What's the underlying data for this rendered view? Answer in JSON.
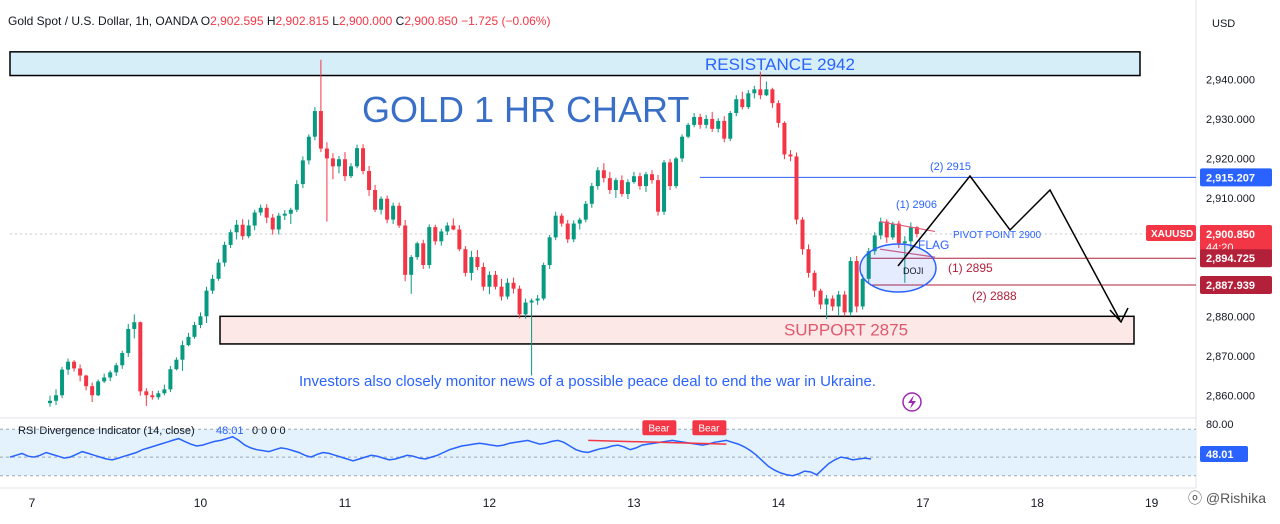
{
  "header": {
    "symbol": "Gold Spot / U.S. Dollar, 1h, OANDA",
    "o_label": "O",
    "o_value": "2,902.595",
    "h_label": "H",
    "h_value": "2,902.815",
    "l_label": "L",
    "l_value": "2,900.000",
    "c_label": "C",
    "c_value": "2,900.850",
    "change": "−1.725 (−0.06%)"
  },
  "currency": "USD",
  "title_annotation": "GOLD 1 HR CHART",
  "resistance_label": "RESISTANCE 2942",
  "support_label": "SUPPORT  2875",
  "news_text": "Investors also closely monitor news of a possible peace deal to end the war in Ukraine.",
  "annotations": {
    "target2_top": "(2) 2915",
    "target1_top": "(1) 2906",
    "pivot": "PIVOT POINT 2900",
    "flag": "FLAG",
    "doji": "DOJI",
    "target1_bottom": "(1) 2895",
    "target2_bottom": "(2) 2888"
  },
  "price_tags": {
    "level_2915": "2,915.207",
    "symbol_tag": "XAUUSD",
    "current_price": "2,900.850",
    "countdown": "44:20",
    "level_2894": "2,894.725",
    "level_2887": "2,887.939"
  },
  "rsi": {
    "label": "RSI Divergence Indicator (14, close)",
    "value_text": "48.01",
    "extra": "0 0 0 0",
    "bear_label": "Bear",
    "current": "48.01"
  },
  "watermark": "@Rishika",
  "colors": {
    "up": "#089981",
    "down": "#f23645",
    "annotation_blue": "#2962ff",
    "title_blue": "#3a6fc8",
    "resistance_fill": "#d6eef8",
    "support_fill": "#fde8e8",
    "rsi_band": "#e3f2fd",
    "rsi_line": "#2962ff"
  },
  "chart_data": {
    "type": "candlestick",
    "y_axis": {
      "min": 2855,
      "max": 2950,
      "ticks": [
        "2,940.000",
        "2,930.000",
        "2,920.000",
        "2,910.000",
        "2,880.000",
        "2,870.000",
        "2,860.000"
      ],
      "tick_values": [
        2940,
        2930,
        2920,
        2910,
        2880,
        2870,
        2860
      ]
    },
    "x_axis": {
      "ticks": [
        "7",
        "10",
        "11",
        "12",
        "13",
        "14",
        "17",
        "18",
        "19"
      ],
      "tick_positions": [
        0,
        24,
        48,
        72,
        96,
        120,
        144,
        163,
        182
      ]
    },
    "levels": {
      "resistance_top": 2947,
      "resistance_bottom": 2941,
      "support_top": 2880,
      "support_bottom": 2873,
      "target_2915": 2915.207,
      "current": 2900.85,
      "level_2894": 2894.725,
      "level_2887": 2887.939
    },
    "candles": [
      {
        "o": 2858.0,
        "h": 2859.9,
        "l": 2857.1,
        "c": 2858.6
      },
      {
        "o": 2858.6,
        "h": 2861.5,
        "l": 2857.5,
        "c": 2860.0
      },
      {
        "o": 2860.0,
        "h": 2867.2,
        "l": 2859.3,
        "c": 2866.5
      },
      {
        "o": 2866.5,
        "h": 2869.3,
        "l": 2865.2,
        "c": 2868.5
      },
      {
        "o": 2868.5,
        "h": 2868.9,
        "l": 2866.0,
        "c": 2866.8
      },
      {
        "o": 2866.8,
        "h": 2867.8,
        "l": 2863.5,
        "c": 2865.0
      },
      {
        "o": 2865.0,
        "h": 2865.2,
        "l": 2861.2,
        "c": 2862.3
      },
      {
        "o": 2862.3,
        "h": 2863.2,
        "l": 2858.3,
        "c": 2860.0
      },
      {
        "o": 2860.0,
        "h": 2864.0,
        "l": 2859.8,
        "c": 2863.5
      },
      {
        "o": 2863.5,
        "h": 2865.5,
        "l": 2863.1,
        "c": 2864.5
      },
      {
        "o": 2864.5,
        "h": 2866.3,
        "l": 2863.6,
        "c": 2865.8
      },
      {
        "o": 2865.8,
        "h": 2868.2,
        "l": 2864.9,
        "c": 2867.6
      },
      {
        "o": 2867.6,
        "h": 2871.3,
        "l": 2866.7,
        "c": 2870.7
      },
      {
        "o": 2870.7,
        "h": 2878.1,
        "l": 2869.7,
        "c": 2876.8
      },
      {
        "o": 2876.8,
        "h": 2880.5,
        "l": 2874.4,
        "c": 2878.5
      },
      {
        "o": 2878.5,
        "h": 2878.7,
        "l": 2859.9,
        "c": 2861.0
      },
      {
        "o": 2861.0,
        "h": 2861.8,
        "l": 2857.3,
        "c": 2860.0
      },
      {
        "o": 2860.0,
        "h": 2861.1,
        "l": 2858.9,
        "c": 2859.5
      },
      {
        "o": 2859.5,
        "h": 2861.2,
        "l": 2858.9,
        "c": 2860.5
      },
      {
        "o": 2860.5,
        "h": 2862.7,
        "l": 2860.0,
        "c": 2861.5
      },
      {
        "o": 2861.5,
        "h": 2867.4,
        "l": 2860.8,
        "c": 2866.6
      },
      {
        "o": 2866.6,
        "h": 2869.6,
        "l": 2866.3,
        "c": 2869.0
      },
      {
        "o": 2869.0,
        "h": 2873.8,
        "l": 2866.2,
        "c": 2872.7
      },
      {
        "o": 2872.7,
        "h": 2875.8,
        "l": 2872.4,
        "c": 2874.8
      },
      {
        "o": 2874.8,
        "h": 2878.6,
        "l": 2874.3,
        "c": 2877.8
      },
      {
        "o": 2877.8,
        "h": 2881.0,
        "l": 2877.0,
        "c": 2880.0
      },
      {
        "o": 2880.0,
        "h": 2887.5,
        "l": 2878.3,
        "c": 2886.5
      },
      {
        "o": 2886.5,
        "h": 2890.5,
        "l": 2885.7,
        "c": 2889.5
      },
      {
        "o": 2889.5,
        "h": 2894.5,
        "l": 2889.0,
        "c": 2893.6
      },
      {
        "o": 2893.6,
        "h": 2898.9,
        "l": 2892.6,
        "c": 2898.1
      },
      {
        "o": 2898.1,
        "h": 2902.0,
        "l": 2897.3,
        "c": 2901.3
      },
      {
        "o": 2901.3,
        "h": 2904.4,
        "l": 2899.5,
        "c": 2903.2
      },
      {
        "o": 2903.2,
        "h": 2904.6,
        "l": 2899.4,
        "c": 2900.3
      },
      {
        "o": 2900.3,
        "h": 2904.5,
        "l": 2899.8,
        "c": 2903.0
      },
      {
        "o": 2903.0,
        "h": 2907.0,
        "l": 2901.8,
        "c": 2906.3
      },
      {
        "o": 2906.3,
        "h": 2908.3,
        "l": 2905.5,
        "c": 2907.5
      },
      {
        "o": 2907.5,
        "h": 2908.4,
        "l": 2903.6,
        "c": 2905.0
      },
      {
        "o": 2905.0,
        "h": 2905.9,
        "l": 2900.7,
        "c": 2902.0
      },
      {
        "o": 2902.0,
        "h": 2906.2,
        "l": 2900.7,
        "c": 2905.5
      },
      {
        "o": 2905.5,
        "h": 2906.9,
        "l": 2904.4,
        "c": 2906.0
      },
      {
        "o": 2906.0,
        "h": 2907.5,
        "l": 2903.4,
        "c": 2907.0
      },
      {
        "o": 2907.0,
        "h": 2914.5,
        "l": 2906.4,
        "c": 2913.5
      },
      {
        "o": 2913.5,
        "h": 2920.5,
        "l": 2912.5,
        "c": 2919.5
      },
      {
        "o": 2919.5,
        "h": 2926.1,
        "l": 2918.5,
        "c": 2925.5
      },
      {
        "o": 2925.5,
        "h": 2933.0,
        "l": 2924.6,
        "c": 2932.0
      },
      {
        "o": 2932.0,
        "h": 2945.0,
        "l": 2921.6,
        "c": 2922.5
      },
      {
        "o": 2922.5,
        "h": 2924.1,
        "l": 2904.0,
        "c": 2920.0
      },
      {
        "o": 2920.0,
        "h": 2921.3,
        "l": 2914.7,
        "c": 2918.0
      },
      {
        "o": 2918.0,
        "h": 2920.6,
        "l": 2916.2,
        "c": 2919.8
      },
      {
        "o": 2919.8,
        "h": 2921.6,
        "l": 2914.3,
        "c": 2915.5
      },
      {
        "o": 2915.5,
        "h": 2918.8,
        "l": 2915.0,
        "c": 2918.0
      },
      {
        "o": 2918.0,
        "h": 2923.5,
        "l": 2917.5,
        "c": 2922.6
      },
      {
        "o": 2922.6,
        "h": 2923.6,
        "l": 2916.0,
        "c": 2916.8
      },
      {
        "o": 2916.8,
        "h": 2918.1,
        "l": 2910.5,
        "c": 2912.0
      },
      {
        "o": 2912.0,
        "h": 2913.3,
        "l": 2906.4,
        "c": 2907.0
      },
      {
        "o": 2907.0,
        "h": 2910.4,
        "l": 2905.8,
        "c": 2909.8
      },
      {
        "o": 2909.8,
        "h": 2910.6,
        "l": 2903.6,
        "c": 2904.5
      },
      {
        "o": 2904.5,
        "h": 2908.8,
        "l": 2903.4,
        "c": 2908.0
      },
      {
        "o": 2908.0,
        "h": 2908.8,
        "l": 2902.4,
        "c": 2903.0
      },
      {
        "o": 2903.0,
        "h": 2904.4,
        "l": 2888.9,
        "c": 2890.5
      },
      {
        "o": 2890.5,
        "h": 2895.5,
        "l": 2885.7,
        "c": 2895.0
      },
      {
        "o": 2895.0,
        "h": 2898.9,
        "l": 2894.3,
        "c": 2898.5
      },
      {
        "o": 2898.5,
        "h": 2899.4,
        "l": 2892.0,
        "c": 2893.0
      },
      {
        "o": 2893.0,
        "h": 2903.3,
        "l": 2892.1,
        "c": 2902.6
      },
      {
        "o": 2902.6,
        "h": 2903.2,
        "l": 2898.1,
        "c": 2899.0
      },
      {
        "o": 2899.0,
        "h": 2902.2,
        "l": 2897.9,
        "c": 2901.5
      },
      {
        "o": 2901.5,
        "h": 2903.8,
        "l": 2900.6,
        "c": 2903.0
      },
      {
        "o": 2903.0,
        "h": 2904.8,
        "l": 2901.8,
        "c": 2902.0
      },
      {
        "o": 2902.0,
        "h": 2903.1,
        "l": 2896.5,
        "c": 2897.0
      },
      {
        "o": 2897.0,
        "h": 2897.8,
        "l": 2890.1,
        "c": 2891.0
      },
      {
        "o": 2891.0,
        "h": 2896.6,
        "l": 2889.1,
        "c": 2895.0
      },
      {
        "o": 2895.0,
        "h": 2896.8,
        "l": 2891.7,
        "c": 2892.5
      },
      {
        "o": 2892.5,
        "h": 2893.6,
        "l": 2886.5,
        "c": 2887.5
      },
      {
        "o": 2887.5,
        "h": 2891.4,
        "l": 2885.6,
        "c": 2890.5
      },
      {
        "o": 2890.5,
        "h": 2891.5,
        "l": 2886.8,
        "c": 2887.5
      },
      {
        "o": 2887.5,
        "h": 2889.5,
        "l": 2884.0,
        "c": 2885.0
      },
      {
        "o": 2885.0,
        "h": 2889.6,
        "l": 2884.3,
        "c": 2888.5
      },
      {
        "o": 2888.5,
        "h": 2889.8,
        "l": 2885.8,
        "c": 2887.0
      },
      {
        "o": 2887.0,
        "h": 2887.8,
        "l": 2879.5,
        "c": 2880.5
      },
      {
        "o": 2880.5,
        "h": 2884.5,
        "l": 2879.4,
        "c": 2883.5
      },
      {
        "o": 2883.5,
        "h": 2884.5,
        "l": 2865.0,
        "c": 2884.0
      },
      {
        "o": 2884.0,
        "h": 2885.4,
        "l": 2882.9,
        "c": 2884.5
      },
      {
        "o": 2884.5,
        "h": 2893.6,
        "l": 2884.0,
        "c": 2893.0
      },
      {
        "o": 2893.0,
        "h": 2900.6,
        "l": 2892.0,
        "c": 2900.0
      },
      {
        "o": 2900.0,
        "h": 2906.5,
        "l": 2899.3,
        "c": 2905.5
      },
      {
        "o": 2905.5,
        "h": 2906.1,
        "l": 2902.7,
        "c": 2903.5
      },
      {
        "o": 2903.5,
        "h": 2904.4,
        "l": 2898.6,
        "c": 2899.5
      },
      {
        "o": 2899.5,
        "h": 2904.3,
        "l": 2898.8,
        "c": 2903.5
      },
      {
        "o": 2903.5,
        "h": 2905.0,
        "l": 2902.0,
        "c": 2904.5
      },
      {
        "o": 2904.5,
        "h": 2909.2,
        "l": 2903.8,
        "c": 2908.5
      },
      {
        "o": 2908.5,
        "h": 2913.8,
        "l": 2907.5,
        "c": 2913.0
      },
      {
        "o": 2913.0,
        "h": 2917.8,
        "l": 2912.1,
        "c": 2917.0
      },
      {
        "o": 2917.0,
        "h": 2918.8,
        "l": 2913.9,
        "c": 2915.0
      },
      {
        "o": 2915.0,
        "h": 2916.6,
        "l": 2911.0,
        "c": 2912.0
      },
      {
        "o": 2912.0,
        "h": 2915.1,
        "l": 2910.0,
        "c": 2914.5
      },
      {
        "o": 2914.5,
        "h": 2915.7,
        "l": 2910.3,
        "c": 2911.0
      },
      {
        "o": 2911.0,
        "h": 2914.7,
        "l": 2909.7,
        "c": 2914.0
      },
      {
        "o": 2914.0,
        "h": 2916.6,
        "l": 2913.6,
        "c": 2915.5
      },
      {
        "o": 2915.5,
        "h": 2916.4,
        "l": 2912.1,
        "c": 2913.0
      },
      {
        "o": 2913.0,
        "h": 2916.6,
        "l": 2911.5,
        "c": 2916.0
      },
      {
        "o": 2916.0,
        "h": 2917.0,
        "l": 2913.6,
        "c": 2914.5
      },
      {
        "o": 2914.5,
        "h": 2915.8,
        "l": 2905.5,
        "c": 2906.5
      },
      {
        "o": 2906.5,
        "h": 2919.6,
        "l": 2905.7,
        "c": 2919.0
      },
      {
        "o": 2919.0,
        "h": 2919.9,
        "l": 2912.0,
        "c": 2913.0
      },
      {
        "o": 2913.0,
        "h": 2920.4,
        "l": 2912.4,
        "c": 2920.0
      },
      {
        "o": 2920.0,
        "h": 2926.1,
        "l": 2919.1,
        "c": 2925.5
      },
      {
        "o": 2925.5,
        "h": 2929.0,
        "l": 2925.1,
        "c": 2928.5
      },
      {
        "o": 2928.5,
        "h": 2931.5,
        "l": 2927.9,
        "c": 2930.5
      },
      {
        "o": 2930.5,
        "h": 2931.3,
        "l": 2927.5,
        "c": 2928.5
      },
      {
        "o": 2928.5,
        "h": 2931.0,
        "l": 2927.6,
        "c": 2930.0
      },
      {
        "o": 2930.0,
        "h": 2931.8,
        "l": 2926.7,
        "c": 2927.5
      },
      {
        "o": 2927.5,
        "h": 2930.2,
        "l": 2926.6,
        "c": 2929.5
      },
      {
        "o": 2929.5,
        "h": 2930.7,
        "l": 2924.1,
        "c": 2925.0
      },
      {
        "o": 2925.0,
        "h": 2932.0,
        "l": 2924.4,
        "c": 2931.5
      },
      {
        "o": 2931.5,
        "h": 2936.0,
        "l": 2930.7,
        "c": 2935.0
      },
      {
        "o": 2935.0,
        "h": 2936.9,
        "l": 2932.4,
        "c": 2933.0
      },
      {
        "o": 2933.0,
        "h": 2937.3,
        "l": 2932.5,
        "c": 2936.5
      },
      {
        "o": 2936.5,
        "h": 2938.4,
        "l": 2935.2,
        "c": 2937.5
      },
      {
        "o": 2937.5,
        "h": 2942.0,
        "l": 2935.0,
        "c": 2936.0
      },
      {
        "o": 2936.0,
        "h": 2939.5,
        "l": 2935.8,
        "c": 2937.5
      },
      {
        "o": 2937.5,
        "h": 2937.9,
        "l": 2932.8,
        "c": 2934.0
      },
      {
        "o": 2934.0,
        "h": 2934.7,
        "l": 2927.8,
        "c": 2929.0
      },
      {
        "o": 2929.0,
        "h": 2929.4,
        "l": 2919.8,
        "c": 2921.0
      },
      {
        "o": 2921.0,
        "h": 2922.1,
        "l": 2919.3,
        "c": 2920.5
      },
      {
        "o": 2920.5,
        "h": 2921.5,
        "l": 2903.3,
        "c": 2904.5
      },
      {
        "o": 2904.5,
        "h": 2905.1,
        "l": 2895.6,
        "c": 2897.0
      },
      {
        "o": 2897.0,
        "h": 2898.2,
        "l": 2889.8,
        "c": 2891.0
      },
      {
        "o": 2891.0,
        "h": 2891.6,
        "l": 2884.9,
        "c": 2886.5
      },
      {
        "o": 2886.5,
        "h": 2887.0,
        "l": 2881.8,
        "c": 2883.0
      },
      {
        "o": 2883.0,
        "h": 2885.4,
        "l": 2879.3,
        "c": 2884.5
      },
      {
        "o": 2884.5,
        "h": 2885.3,
        "l": 2881.4,
        "c": 2882.5
      },
      {
        "o": 2882.5,
        "h": 2886.4,
        "l": 2880.0,
        "c": 2885.5
      },
      {
        "o": 2885.5,
        "h": 2886.4,
        "l": 2880.0,
        "c": 2881.0
      },
      {
        "o": 2881.0,
        "h": 2895.0,
        "l": 2880.0,
        "c": 2894.0
      },
      {
        "o": 2894.0,
        "h": 2895.3,
        "l": 2881.0,
        "c": 2882.5
      },
      {
        "o": 2882.5,
        "h": 2890.6,
        "l": 2881.7,
        "c": 2889.5
      },
      {
        "o": 2889.5,
        "h": 2897.3,
        "l": 2888.5,
        "c": 2896.5
      },
      {
        "o": 2896.5,
        "h": 2901.3,
        "l": 2895.6,
        "c": 2900.5
      },
      {
        "o": 2900.5,
        "h": 2905.0,
        "l": 2899.5,
        "c": 2904.0
      },
      {
        "o": 2904.0,
        "h": 2904.6,
        "l": 2898.6,
        "c": 2900.0
      },
      {
        "o": 2900.0,
        "h": 2904.0,
        "l": 2899.4,
        "c": 2903.5
      },
      {
        "o": 2903.5,
        "h": 2904.2,
        "l": 2897.3,
        "c": 2898.5
      },
      {
        "o": 2898.5,
        "h": 2900.3,
        "l": 2888.5,
        "c": 2899.0
      },
      {
        "o": 2899.0,
        "h": 2903.8,
        "l": 2896.6,
        "c": 2902.6
      },
      {
        "o": 2902.6,
        "h": 2902.815,
        "l": 2900.0,
        "c": 2900.85
      }
    ],
    "rsi_series": [
      50,
      52,
      54,
      51,
      50,
      52,
      55,
      53,
      51,
      49,
      50,
      53,
      56,
      54,
      52,
      50,
      48,
      47,
      49,
      51,
      53,
      55,
      58,
      60,
      62,
      64,
      66,
      68,
      70,
      67,
      64,
      62,
      63,
      65,
      67,
      68,
      70,
      72,
      68,
      63,
      60,
      58,
      57,
      56,
      58,
      60,
      59,
      57,
      55,
      52,
      50,
      53,
      55,
      54,
      52,
      50,
      48,
      46,
      48,
      50,
      52,
      51,
      49,
      47,
      48,
      50,
      52,
      51,
      49,
      48,
      50,
      52,
      55,
      58,
      60,
      62,
      63,
      64,
      65,
      64,
      63,
      62,
      63,
      65,
      66,
      67,
      68,
      66,
      64,
      65,
      67,
      68,
      66,
      62,
      58,
      56,
      55,
      57,
      59,
      60,
      62,
      63,
      61,
      58,
      60,
      63,
      64,
      65,
      66,
      67,
      68,
      67,
      66,
      65,
      64,
      63,
      64,
      66,
      67,
      68,
      66,
      64,
      61,
      57,
      52,
      46,
      40,
      36,
      33,
      31,
      30,
      32,
      35,
      34,
      31,
      37,
      43,
      47,
      50,
      49,
      47,
      48,
      49,
      48
    ],
    "rsi_range": [
      20,
      90
    ],
    "rsi_ticks": [
      "80.00"
    ],
    "bear_points": [
      111,
      119
    ]
  }
}
